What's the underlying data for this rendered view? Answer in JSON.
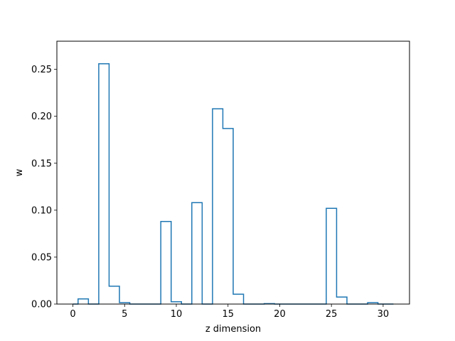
{
  "chart_data": {
    "type": "histogram-step",
    "xlabel": "z dimension",
    "ylabel": "w",
    "xlim": [
      -1.55,
      32.55
    ],
    "ylim": [
      0,
      0.28
    ],
    "x_ticks": [
      0,
      5,
      10,
      15,
      20,
      25,
      30
    ],
    "y_ticks": [
      0.0,
      0.05,
      0.1,
      0.15,
      0.2,
      0.25
    ],
    "grid": false,
    "color": "#1f77b4",
    "series": [
      {
        "bin_edges": [
          0,
          0.5,
          1.5,
          2.5,
          3.5,
          4.5,
          5.5,
          6.5,
          7.5,
          8.5,
          9.5,
          10.5,
          11.5,
          12.5,
          13.5,
          14.5,
          15.5,
          16.5,
          17.5,
          18.5,
          19.5,
          20.5,
          21.5,
          22.5,
          23.5,
          24.5,
          25.5,
          26.5,
          27.5,
          28.5,
          29.5,
          30.5,
          31
        ],
        "values": [
          0.0,
          0.0055,
          0.0,
          0.256,
          0.019,
          0.0015,
          0.0,
          0.0,
          0.0,
          0.088,
          0.0025,
          0.0,
          0.108,
          0.0,
          0.208,
          0.187,
          0.0105,
          0.0,
          0.0,
          0.0005,
          0.0,
          0.0,
          0.0,
          0.0,
          0.0,
          0.102,
          0.0075,
          0.0,
          0.0,
          0.0015,
          0.0,
          0.0
        ]
      }
    ]
  }
}
